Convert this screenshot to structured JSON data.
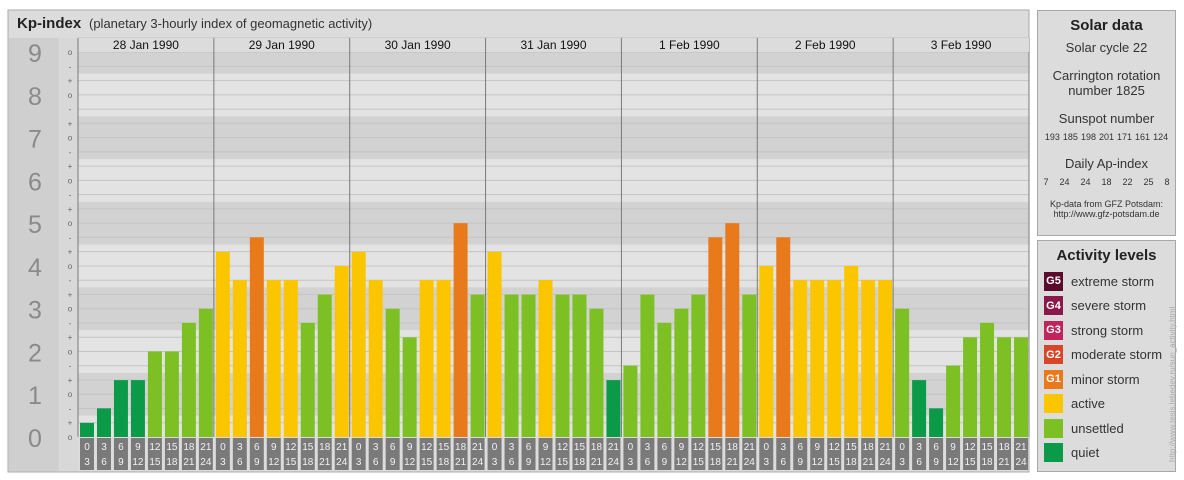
{
  "header": {
    "title": "Kp-index",
    "subtitle": "(planetary 3-hourly index of geomagnetic activity)"
  },
  "chart_data": {
    "type": "bar",
    "y_tick_labels": [
      "0",
      "1",
      "2",
      "3",
      "4",
      "5",
      "6",
      "7",
      "8",
      "9"
    ],
    "y_minor_labels": [
      "o",
      "+",
      "-",
      "o",
      "+",
      "-",
      "o",
      "+",
      "-",
      "o",
      "+",
      "-",
      "o",
      "+",
      "-",
      "o",
      "+",
      "-",
      "o",
      "+",
      "-",
      "o",
      "+",
      "-",
      "o",
      "+",
      "-",
      "o"
    ],
    "ylim": [
      0,
      9.33
    ],
    "days": [
      "28 Jan 1990",
      "29 Jan 1990",
      "30 Jan 1990",
      "31 Jan 1990",
      "1 Feb 1990",
      "2 Feb 1990",
      "3 Feb 1990"
    ],
    "interval_labels": [
      [
        "0",
        "3"
      ],
      [
        "3",
        "6"
      ],
      [
        "6",
        "9"
      ],
      [
        "9",
        "12"
      ],
      [
        "12",
        "15"
      ],
      [
        "15",
        "18"
      ],
      [
        "18",
        "21"
      ],
      [
        "21",
        "24"
      ]
    ],
    "values": [
      0.33,
      0.67,
      1.33,
      1.33,
      2.0,
      2.0,
      2.67,
      3.0,
      4.33,
      3.67,
      4.67,
      3.67,
      3.67,
      2.67,
      3.33,
      4.0,
      4.33,
      3.67,
      3.0,
      2.33,
      3.67,
      3.67,
      5.0,
      3.33,
      4.33,
      3.33,
      3.33,
      3.67,
      3.33,
      3.33,
      3.0,
      1.33,
      1.67,
      3.33,
      2.67,
      3.0,
      3.33,
      4.67,
      5.0,
      3.33,
      4.0,
      4.67,
      3.67,
      3.67,
      3.67,
      4.0,
      3.67,
      3.67,
      3.0,
      1.33,
      0.67,
      1.67,
      2.33,
      2.67,
      2.33,
      2.33
    ],
    "colors": {
      "quiet": "#0a9a48",
      "unsettled": "#7cc024",
      "active": "#fbc600",
      "minor": "#e87a1c",
      "moderate": "#d8462a",
      "strong": "#c0245a",
      "severe": "#8a1848",
      "extreme": "#5c0a2c"
    }
  },
  "solar": {
    "title": "Solar data",
    "cycle": "Solar cycle 22",
    "carrington_line1": "Carrington rotation",
    "carrington_line2": "number 1825",
    "sunspot_title": "Sunspot number",
    "sunspots": [
      "193",
      "185",
      "198",
      "201",
      "171",
      "161",
      "124"
    ],
    "ap_title": "Daily Ap-index",
    "ap": [
      "7",
      "24",
      "24",
      "18",
      "22",
      "25",
      "8"
    ],
    "source_line1": "Kp-data from GFZ Potsdam:",
    "source_line2": "http://www.gfz-potsdam.de"
  },
  "legend": {
    "title": "Activity levels",
    "items": [
      {
        "badge": "G5",
        "label": "extreme storm",
        "color": "#5c0a2c"
      },
      {
        "badge": "G4",
        "label": "severe storm",
        "color": "#8a1848"
      },
      {
        "badge": "G3",
        "label": "strong storm",
        "color": "#c0245a"
      },
      {
        "badge": "G2",
        "label": "moderate storm",
        "color": "#d8462a"
      },
      {
        "badge": "G1",
        "label": "minor storm",
        "color": "#e87a1c"
      },
      {
        "badge": "",
        "label": "active",
        "color": "#fbc600"
      },
      {
        "badge": "",
        "label": "unsettled",
        "color": "#7cc024"
      },
      {
        "badge": "",
        "label": "quiet",
        "color": "#0a9a48"
      }
    ]
  },
  "watermark": "http://www.tesis.lebedev.ru/sun_activity.html"
}
